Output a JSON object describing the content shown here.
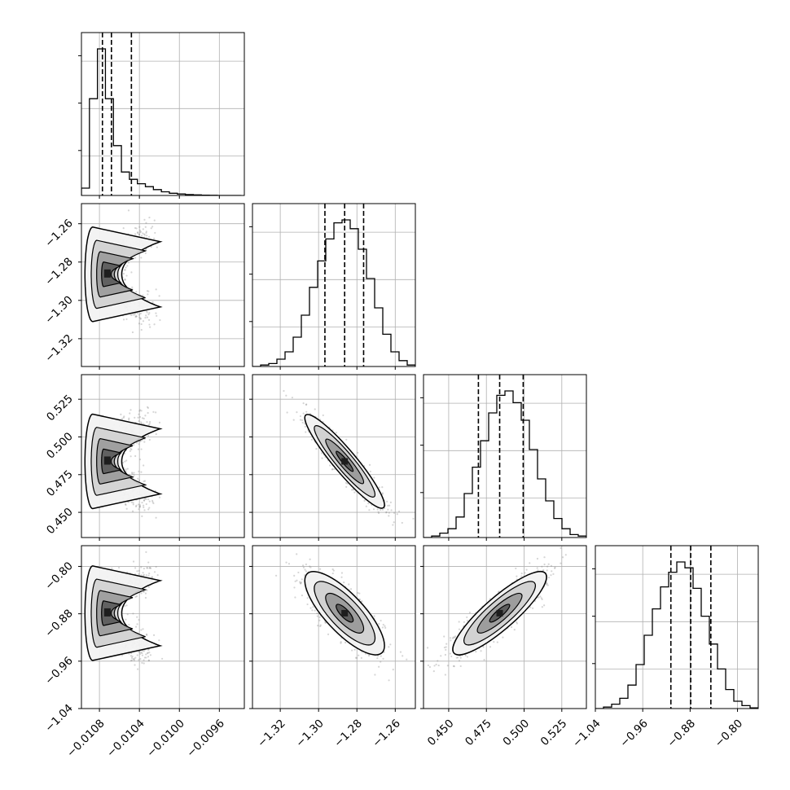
{
  "colors": {
    "contour": "#000000",
    "scatter": "#888888",
    "grid": "#b0b0b0",
    "density_shades": [
      "#f2f2f2",
      "#d2d2d2",
      "#9d9d9d",
      "#5e5e5e",
      "#1e1e1e"
    ]
  },
  "chart_data": {
    "type": "corner",
    "grid": true,
    "parameters": [
      {
        "range": [
          -0.01098,
          -0.00935
        ],
        "ticks": [
          -0.0108,
          -0.0104,
          -0.01,
          -0.0096
        ],
        "tick_labels": [
          "−0.0108",
          "−0.0104",
          "−0.0100",
          "−0.0096"
        ],
        "quantiles": [
          -0.01077,
          -0.01068,
          -0.01048
        ],
        "mode": -0.01072,
        "sd": 7e-05,
        "hist_peak": 1.0
      },
      {
        "range": [
          -1.3345,
          -1.2495
        ],
        "ticks": [
          -1.32,
          -1.3,
          -1.28,
          -1.26
        ],
        "tick_labels": [
          "−1.32",
          "−1.30",
          "−1.28",
          "−1.26"
        ],
        "quantiles": [
          -1.2967,
          -1.2864,
          -1.2765
        ],
        "median": -1.2864,
        "sd": 0.0099
      },
      {
        "range": [
          0.4333,
          0.5413
        ],
        "ticks": [
          0.45,
          0.475,
          0.5,
          0.525
        ],
        "tick_labels": [
          "0.450",
          "0.475",
          "0.500",
          "0.525"
        ],
        "quantiles": [
          0.4697,
          0.4838,
          0.4994
        ],
        "median": 0.4838,
        "sd": 0.0148
      },
      {
        "range": [
          -1.04,
          -0.765
        ],
        "ticks": [
          -1.04,
          -0.96,
          -0.88,
          -0.8
        ],
        "tick_labels": [
          "−1.04",
          "−0.96",
          "−0.88",
          "−0.80"
        ],
        "quantiles": [
          -0.9125,
          -0.879,
          -0.845
        ],
        "median": -0.879,
        "sd": 0.0335
      }
    ],
    "histograms": [
      {
        "bins": [
          -0.01098,
          -0.0109,
          -0.01082,
          -0.01074,
          -0.01066,
          -0.01058,
          -0.0105,
          -0.01042,
          -0.01034,
          -0.01026,
          -0.01018,
          -0.0101,
          -0.01002,
          -0.00994,
          -0.00986,
          -0.00978,
          -0.0097,
          -0.00962,
          -0.00954,
          -0.00946,
          -0.00938
        ],
        "counts": [
          0.05,
          0.66,
          1.0,
          0.66,
          0.34,
          0.16,
          0.11,
          0.08,
          0.06,
          0.04,
          0.025,
          0.015,
          0.01,
          0.006,
          0.004,
          0.002,
          0.001,
          0.0,
          0.0,
          0.0
        ]
      },
      {
        "bins": [
          -1.3345,
          -1.33025,
          -1.326,
          -1.32175,
          -1.3175,
          -1.31325,
          -1.309,
          -1.30475,
          -1.3005,
          -1.29625,
          -1.292,
          -1.28775,
          -1.2835,
          -1.27925,
          -1.275,
          -1.27075,
          -1.2665,
          -1.26225,
          -1.258,
          -1.25375,
          -1.2495
        ],
        "counts": [
          0.0,
          0.01,
          0.02,
          0.05,
          0.1,
          0.2,
          0.35,
          0.54,
          0.72,
          0.87,
          0.98,
          1.0,
          0.94,
          0.8,
          0.6,
          0.4,
          0.22,
          0.1,
          0.04,
          0.01
        ]
      },
      {
        "bins": [
          0.4333,
          0.4387,
          0.4441,
          0.4495,
          0.4549,
          0.4603,
          0.4657,
          0.4711,
          0.4765,
          0.4819,
          0.4873,
          0.4927,
          0.4981,
          0.5035,
          0.5089,
          0.5143,
          0.5197,
          0.5251,
          0.5305,
          0.5359,
          0.5413
        ],
        "counts": [
          0.0,
          0.01,
          0.03,
          0.06,
          0.14,
          0.3,
          0.48,
          0.66,
          0.85,
          0.97,
          1.0,
          0.92,
          0.8,
          0.6,
          0.4,
          0.25,
          0.13,
          0.06,
          0.02,
          0.01
        ]
      },
      {
        "bins": [
          -1.04,
          -1.02625,
          -1.0125,
          -0.99875,
          -0.985,
          -0.97125,
          -0.9575,
          -0.94375,
          -0.93,
          -0.91625,
          -0.9025,
          -0.88875,
          -0.875,
          -0.86125,
          -0.8475,
          -0.83375,
          -0.82,
          -0.80625,
          -0.7925,
          -0.77875,
          -0.765
        ],
        "counts": [
          0.0,
          0.01,
          0.03,
          0.07,
          0.16,
          0.3,
          0.5,
          0.68,
          0.83,
          0.93,
          1.0,
          0.96,
          0.82,
          0.63,
          0.44,
          0.27,
          0.13,
          0.05,
          0.02,
          0.005
        ]
      }
    ],
    "pairs": [
      {
        "x": 0,
        "y": 1,
        "shape": "banana",
        "center": [
          -0.01072,
          -1.2864
        ]
      },
      {
        "x": 0,
        "y": 2,
        "shape": "banana",
        "center": [
          -0.01072,
          0.4838
        ]
      },
      {
        "x": 1,
        "y": 2,
        "corr": -0.93,
        "center": [
          -1.2864,
          0.4838
        ]
      },
      {
        "x": 0,
        "y": 3,
        "shape": "banana",
        "center": [
          -0.01072,
          -0.879
        ]
      },
      {
        "x": 1,
        "y": 3,
        "corr": -0.78,
        "center": [
          -1.2864,
          -0.879
        ]
      },
      {
        "x": 2,
        "y": 3,
        "corr": 0.87,
        "center": [
          0.4838,
          -0.879
        ]
      }
    ]
  }
}
